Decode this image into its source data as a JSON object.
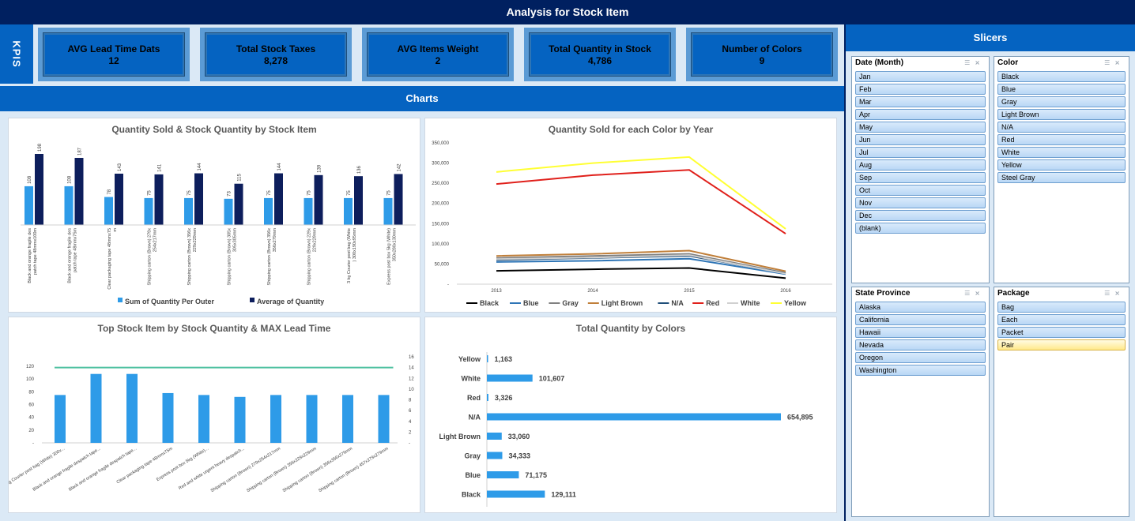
{
  "header": {
    "title": "Analysis for Stock Item"
  },
  "kpis": {
    "label": "KPIS",
    "items": [
      {
        "title": "AVG Lead Time Dats",
        "value": "12"
      },
      {
        "title": "Total Stock Taxes",
        "value": "8,278"
      },
      {
        "title": "AVG Items Weight",
        "value": "2"
      },
      {
        "title": "Total Quantity in Stock",
        "value": "4,786"
      },
      {
        "title": "Number of Colors",
        "value": "9"
      }
    ]
  },
  "charts_header": "Charts",
  "slicers": {
    "title": "Slicers",
    "date": {
      "title": "Date (Month)",
      "items": [
        "Jan",
        "Feb",
        "Mar",
        "Apr",
        "May",
        "Jun",
        "Jul",
        "Aug",
        "Sep",
        "Oct",
        "Nov",
        "Dec",
        "(blank)"
      ]
    },
    "color": {
      "title": "Color",
      "items": [
        "Black",
        "Blue",
        "Gray",
        "Light Brown",
        "N/A",
        "Red",
        "White",
        "Yellow",
        "Steel Gray"
      ]
    },
    "state": {
      "title": "State Province",
      "items": [
        "Alaska",
        "California",
        "Hawaii",
        "Nevada",
        "Oregon",
        "Washington"
      ]
    },
    "package": {
      "title": "Package",
      "items": [
        "Bag",
        "Each",
        "Packet",
        "Pair"
      ],
      "selected": "Pair"
    }
  },
  "chart_data": [
    {
      "type": "bar",
      "title": "Quantity Sold & Stock Quantity by Stock Item",
      "categories": [
        "Black and orange fragile despatch tape 48mmx100m",
        "Black and orange fragile despatch tape 48mmx75m",
        "Clear packaging tape 48mmx75m",
        "Shipping carton (Brown) 279x254x217mm",
        "Shipping carton (Brown) 356x229x229mm",
        "Shipping carton (Brown) 305x305x305mm",
        "Shipping carton (Brown) 356x356x279mm",
        "Shipping carton (Brown) 229x229x229mm",
        "3 kg Courier post bag (White) 300x190x95mm",
        "Express post box 5kg (White) 350x280x130mm"
      ],
      "series": [
        {
          "name": "Sum of Quantity Per Outer",
          "color": "#2e9be8",
          "values": [
            108,
            108,
            78,
            75,
            75,
            73,
            75,
            75,
            75,
            75
          ]
        },
        {
          "name": "Average of Quantity",
          "color": "#0d1e5c",
          "values": [
            198,
            187,
            143,
            141,
            144,
            115,
            144,
            139,
            136,
            142
          ]
        }
      ],
      "ylim": [
        0,
        220
      ]
    },
    {
      "type": "line",
      "title": "Quantity Sold for each Color by Year",
      "x": [
        "2013",
        "2014",
        "2015",
        "2016"
      ],
      "yticks": [
        "350,000",
        "300,000",
        "250,000",
        "200,000",
        "150,000",
        "100,000",
        "50,000",
        "-"
      ],
      "ylim": [
        0,
        350000
      ],
      "series": [
        {
          "name": "Black",
          "color": "#000000",
          "values": [
            33000,
            37000,
            40000,
            15000
          ]
        },
        {
          "name": "Blue",
          "color": "#2e75b6",
          "values": [
            55000,
            58000,
            63000,
            25000
          ]
        },
        {
          "name": "Gray",
          "color": "#808080",
          "values": [
            65000,
            70000,
            75000,
            28000
          ]
        },
        {
          "name": "Light Brown",
          "color": "#c07f3a",
          "values": [
            70000,
            75000,
            83000,
            32000
          ]
        },
        {
          "name": "N/A",
          "color": "#1f4e79",
          "values": [
            60000,
            65000,
            70000,
            27000
          ]
        },
        {
          "name": "Red",
          "color": "#e0201b",
          "values": [
            248000,
            270000,
            283000,
            125000
          ]
        },
        {
          "name": "White",
          "color": "#d0d0d0",
          "values": [
            62000,
            66000,
            72000,
            26000
          ]
        },
        {
          "name": "Yellow",
          "color": "#ffff33",
          "values": [
            278000,
            300000,
            315000,
            137000
          ]
        }
      ]
    },
    {
      "type": "bar",
      "title": "Top Stock Item by Stock Quantity & MAX Lead Time",
      "categories": [
        "3 kg Courier post bag (White) 300x...",
        "Black and orange fragile despatch tape...",
        "Black and orange fragile despatch tape...",
        "Clear packaging tape 48mmx75m",
        "Express post box 5kg (White)...",
        "Red and white urgent heavy despatch...",
        "Shipping carton (Brown) 279x254x217mm",
        "Shipping carton (Brown) 356x229x229mm",
        "Shipping carton (Brown) 356x356x279mm",
        "Shipping carton (Brown) 457x279x279mm"
      ],
      "yticks_left": [
        "120",
        "100",
        "80",
        "60",
        "40",
        "20",
        "-"
      ],
      "yticks_right": [
        "16",
        "14",
        "12",
        "10",
        "8",
        "6",
        "4",
        "2",
        "-"
      ],
      "ylim": [
        0,
        120
      ],
      "y2lim": [
        0,
        16
      ],
      "series": [
        {
          "name": "Sum of Quantity Per Outer",
          "color": "#2e9be8",
          "values": [
            75,
            108,
            108,
            78,
            75,
            72,
            75,
            75,
            75,
            75
          ]
        },
        {
          "name": "Max of Lead Time Days",
          "color": "#4fc1a0",
          "values": [
            14,
            14,
            14,
            14,
            14,
            14,
            14,
            14,
            14,
            14
          ]
        }
      ]
    },
    {
      "type": "bar",
      "orientation": "horizontal",
      "title": "Total Quantity by Colors",
      "categories": [
        "Yellow",
        "White",
        "Red",
        "N/A",
        "Light Brown",
        "Gray",
        "Blue",
        "Black"
      ],
      "values": [
        1163,
        101607,
        3326,
        654895,
        33060,
        34333,
        71175,
        129111
      ],
      "labels": [
        "1,163",
        "101,607",
        "3,326",
        "654,895",
        "33,060",
        "34,333",
        "71,175",
        "129,111"
      ],
      "color": "#2e9be8"
    }
  ]
}
